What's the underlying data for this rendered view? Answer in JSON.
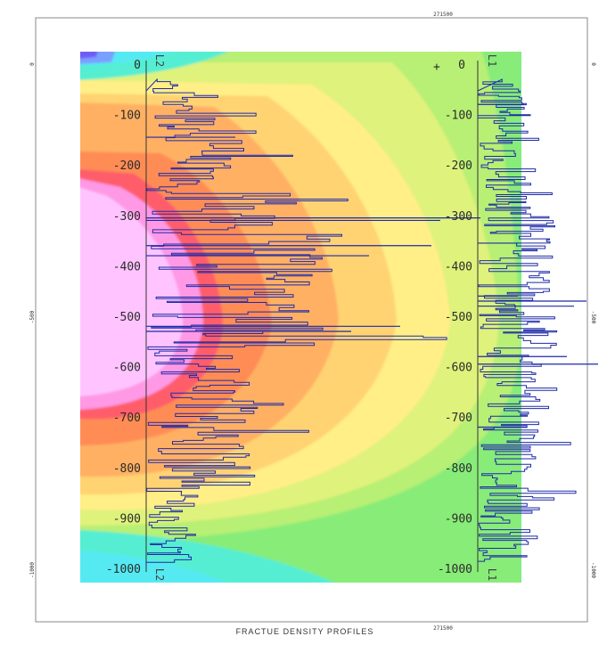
{
  "chart_data": {
    "type": "bar",
    "title": "FRACTUE DENSITY PROFILES",
    "map_coordinate_label": "271500",
    "left_margin_labels": [
      "0",
      "-500",
      "-1000"
    ],
    "right_margin_labels": [
      "0",
      "-500",
      "-1000"
    ],
    "depth_axis": {
      "ylim": [
        0,
        -1000
      ],
      "tick_labels": [
        "0",
        "-100",
        "-200",
        "-300",
        "-400",
        "-500",
        "-600",
        "-700",
        "-800",
        "-900",
        "-1000"
      ]
    },
    "wells": [
      {
        "name": "L2",
        "top_label": "L2",
        "bottom_label": "L2",
        "side_marker": ""
      },
      {
        "name": "L1",
        "top_label": "L1",
        "bottom_label": "L1",
        "side_marker": "+"
      }
    ],
    "colors": {
      "bars": "#1f2aa8",
      "axis": "#333333",
      "contour_scale": [
        "#ffc4ff",
        "#ff99e6",
        "#ff5d6b",
        "#ff8c55",
        "#ffb064",
        "#ffd372",
        "#ffef86",
        "#dff27b",
        "#b8ef74",
        "#88ec78",
        "#66ec9c",
        "#55eed2",
        "#55eaf2",
        "#7aa0ff",
        "#6f5cf5"
      ]
    }
  }
}
